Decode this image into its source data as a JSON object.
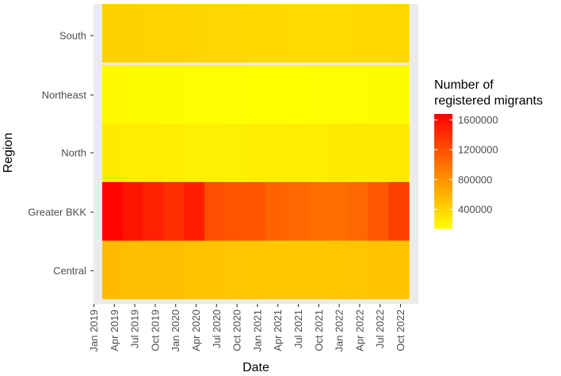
{
  "chart_data": {
    "type": "heatmap",
    "xlabel": "Date",
    "ylabel": "Region",
    "x_ticks": [
      "Jan 2019",
      "Apr 2019",
      "Jul 2019",
      "Oct 2019",
      "Jan 2020",
      "Apr 2020",
      "Jul 2020",
      "Oct 2020",
      "Jan 2021",
      "Apr 2021",
      "Jul 2021",
      "Oct 2021",
      "Jan 2022",
      "Apr 2022",
      "Jul 2022",
      "Oct 2022"
    ],
    "x_cells": [
      "Apr 2019",
      "Jul 2019",
      "Oct 2019",
      "Jan 2020",
      "Apr 2020",
      "Jul 2020",
      "Oct 2020",
      "Jan 2021",
      "Apr 2021",
      "Jul 2021",
      "Oct 2021",
      "Jan 2022",
      "Apr 2022",
      "Jul 2022",
      "Oct 2022"
    ],
    "regions": [
      "South",
      "Northeast",
      "North",
      "Greater BKK",
      "Central"
    ],
    "values": [
      [
        420000,
        415000,
        410000,
        405000,
        395000,
        390000,
        385000,
        370000,
        365000,
        360000,
        360000,
        360000,
        365000,
        370000,
        375000
      ],
      [
        170000,
        165000,
        160000,
        160000,
        150000,
        150000,
        145000,
        140000,
        140000,
        140000,
        145000,
        150000,
        155000,
        160000,
        165000
      ],
      [
        260000,
        255000,
        250000,
        245000,
        235000,
        235000,
        235000,
        240000,
        245000,
        250000,
        255000,
        260000,
        265000,
        270000,
        280000
      ],
      [
        1670000,
        1560000,
        1480000,
        1400000,
        1500000,
        1200000,
        1180000,
        1170000,
        1080000,
        1050000,
        1030000,
        1010000,
        1050000,
        1150000,
        1290000
      ],
      [
        550000,
        540000,
        530000,
        530000,
        510000,
        500000,
        490000,
        480000,
        470000,
        470000,
        475000,
        480000,
        490000,
        500000,
        510000
      ]
    ],
    "legend": {
      "title_lines": [
        "Number of",
        "registered migrants"
      ],
      "ticks": [
        "1600000",
        "1200000",
        "800000",
        "400000"
      ],
      "tick_values": [
        1600000,
        1200000,
        800000,
        400000
      ],
      "min": 140000,
      "max": 1680000,
      "low_color": "#ffff00",
      "high_color": "#ff0000"
    },
    "panel_background": "#ebebeb"
  }
}
